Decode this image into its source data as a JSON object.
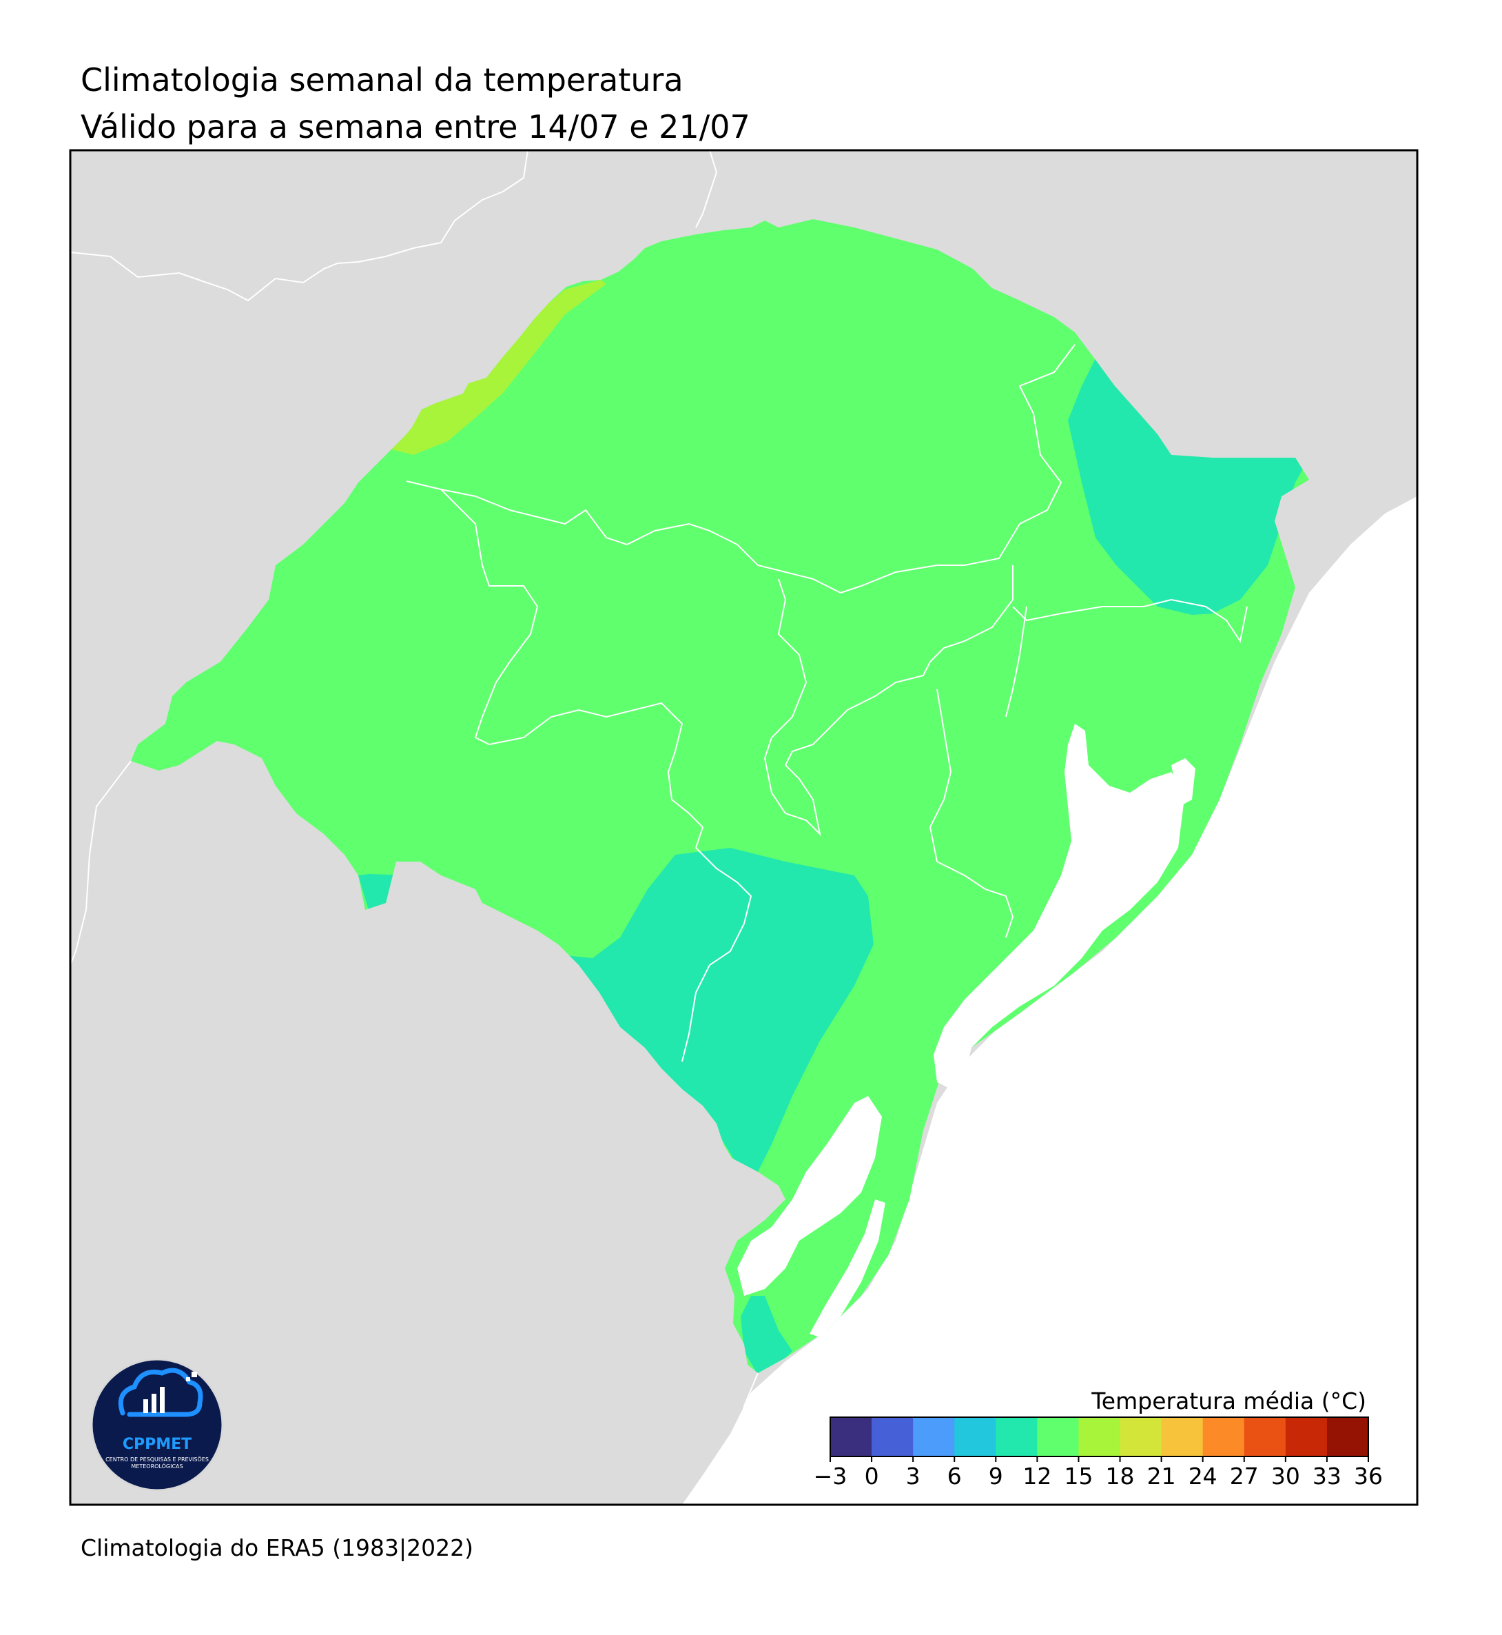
{
  "title": "Climatologia semanal da temperatura",
  "subtitle": "Válido para a semana entre 14/07 e 21/07",
  "footer": "Climatologia do ERA5 (1983|2022)",
  "colors": {
    "land_background": "#dcdcdc",
    "ocean": "#ffffff",
    "border": "#000000",
    "municipal_lines": "#ffffff",
    "temp_12_15": "#5fff6e",
    "temp_9_12": "#22e8ad",
    "temp_15_18": "#a8f43a"
  },
  "colorbar": {
    "title": "Temperatura média (°C)",
    "ticks": [
      "−3",
      "0",
      "3",
      "6",
      "9",
      "12",
      "15",
      "18",
      "21",
      "24",
      "27",
      "30",
      "33",
      "36"
    ],
    "colors": [
      "#3a2f7f",
      "#4660d8",
      "#4b9cfb",
      "#22c6dd",
      "#22e8ad",
      "#5fff6e",
      "#a8f43a",
      "#d4e53a",
      "#f7c33a",
      "#fc8a26",
      "#ea5214",
      "#c82806",
      "#941302"
    ]
  },
  "logo": {
    "name": "CPPMET",
    "tagline_line1": "CENTRO DE PESQUISAS E PREVISÕES",
    "tagline_line2": "METEOROLÓGICAS"
  }
}
